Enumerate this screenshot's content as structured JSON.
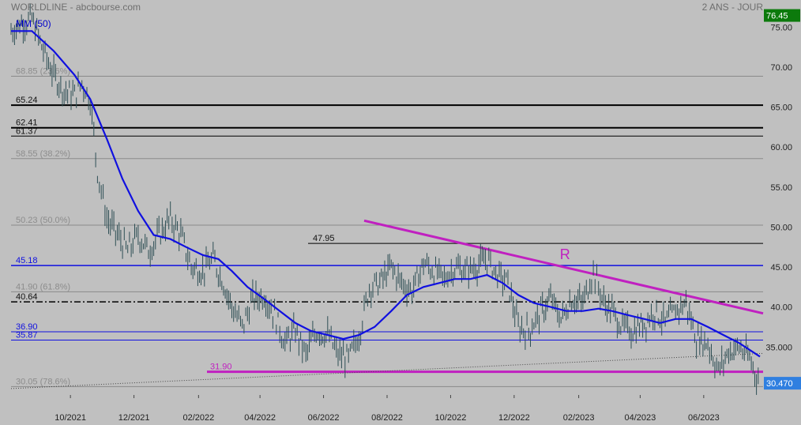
{
  "header": {
    "title": "WORLDLINE - abcbourse.com",
    "period": "2 ANS - JOUR",
    "ma_label": "MM (50)"
  },
  "colors": {
    "background": "#c0c0c0",
    "price_bars": "#2e4f55",
    "moving_average": "#1010e0",
    "resistance": "#c020c0",
    "support_level": "#1010e0",
    "fib_levels": "#8a8a8a",
    "last_price_badge": "#2f7fe0",
    "high_badge": "#0c7a0c"
  },
  "chart_data": {
    "type": "line",
    "title": "WORLDLINE - abcbourse.com",
    "subtitle": "2 ANS - JOUR",
    "xlabel": "",
    "ylabel": "",
    "ylim": [
      29,
      77
    ],
    "xlim": [
      "2021-08-05",
      "2023-07-28"
    ],
    "grid": false,
    "y_ticks": [
      "35.000",
      "40.00",
      "45.00",
      "50.00",
      "55.00",
      "60.00",
      "65.00",
      "70.00",
      "75.00"
    ],
    "x_ticks": [
      {
        "date": "2021-10-01",
        "label": "10/2021"
      },
      {
        "date": "2021-12-01",
        "label": "12/2021"
      },
      {
        "date": "2022-02-01",
        "label": "02/2022"
      },
      {
        "date": "2022-04-01",
        "label": "04/2022"
      },
      {
        "date": "2022-06-01",
        "label": "06/2022"
      },
      {
        "date": "2022-08-01",
        "label": "08/2022"
      },
      {
        "date": "2022-10-01",
        "label": "10/2022"
      },
      {
        "date": "2022-12-01",
        "label": "12/2022"
      },
      {
        "date": "2023-02-01",
        "label": "02/2023"
      },
      {
        "date": "2023-04-01",
        "label": "04/2023"
      },
      {
        "date": "2023-06-01",
        "label": "06/2023"
      }
    ],
    "series": [
      {
        "name": "",
        "kind": "price",
        "x": [
          "2021-08-05",
          "2021-08-15",
          "2021-08-25",
          "2021-09-05",
          "2021-09-15",
          "2021-09-25",
          "2021-10-05",
          "2021-10-12",
          "2021-10-20",
          "2021-10-27",
          "2021-11-05",
          "2021-11-15",
          "2021-11-25",
          "2021-12-05",
          "2021-12-15",
          "2021-12-25",
          "2022-01-05",
          "2022-01-15",
          "2022-01-25",
          "2022-02-05",
          "2022-02-15",
          "2022-02-25",
          "2022-03-05",
          "2022-03-15",
          "2022-03-25",
          "2022-04-05",
          "2022-04-15",
          "2022-04-25",
          "2022-05-05",
          "2022-05-15",
          "2022-05-25",
          "2022-06-05",
          "2022-06-15",
          "2022-06-25",
          "2022-07-05",
          "2022-07-15",
          "2022-07-25",
          "2022-08-05",
          "2022-08-15",
          "2022-08-25",
          "2022-09-05",
          "2022-09-15",
          "2022-09-25",
          "2022-10-05",
          "2022-10-15",
          "2022-10-25",
          "2022-11-05",
          "2022-11-15",
          "2022-11-25",
          "2022-12-05",
          "2022-12-15",
          "2022-12-25",
          "2023-01-05",
          "2023-01-15",
          "2023-01-25",
          "2023-02-05",
          "2023-02-15",
          "2023-02-25",
          "2023-03-05",
          "2023-03-15",
          "2023-03-25",
          "2023-04-05",
          "2023-04-15",
          "2023-04-25",
          "2023-05-05",
          "2023-05-15",
          "2023-05-25",
          "2023-06-05",
          "2023-06-15",
          "2023-06-25",
          "2023-07-05",
          "2023-07-15",
          "2023-07-25"
        ],
        "y": [
          74.5,
          75.5,
          76.0,
          72.0,
          69.0,
          67.0,
          66.5,
          68.0,
          66.0,
          57.0,
          51.0,
          49.0,
          47.0,
          49.0,
          47.0,
          49.0,
          51.0,
          49.0,
          45.0,
          44.5,
          46.0,
          43.0,
          40.0,
          37.5,
          41.0,
          41.5,
          39.0,
          35.5,
          37.0,
          34.0,
          37.0,
          36.5,
          34.0,
          33.5,
          36.5,
          42.5,
          43.0,
          45.0,
          43.0,
          42.0,
          45.5,
          44.5,
          43.5,
          45.0,
          44.5,
          45.0,
          46.0,
          44.0,
          43.0,
          37.5,
          37.0,
          39.0,
          41.0,
          38.5,
          41.0,
          40.5,
          44.5,
          40.5,
          39.5,
          37.5,
          37.0,
          38.0,
          39.5,
          38.0,
          39.5,
          40.5,
          36.0,
          35.5,
          32.0,
          34.5,
          35.0,
          33.5,
          30.47
        ]
      },
      {
        "name": "MM (50)",
        "kind": "moving_average",
        "x": [
          "2021-08-05",
          "2021-08-25",
          "2021-09-15",
          "2021-10-05",
          "2021-10-20",
          "2021-11-05",
          "2021-11-20",
          "2021-12-05",
          "2021-12-20",
          "2022-01-05",
          "2022-01-20",
          "2022-02-05",
          "2022-02-20",
          "2022-03-05",
          "2022-03-20",
          "2022-04-05",
          "2022-04-20",
          "2022-05-05",
          "2022-05-20",
          "2022-06-05",
          "2022-06-20",
          "2022-07-05",
          "2022-07-20",
          "2022-08-05",
          "2022-08-20",
          "2022-09-05",
          "2022-09-20",
          "2022-10-05",
          "2022-10-20",
          "2022-11-05",
          "2022-11-20",
          "2022-12-05",
          "2022-12-20",
          "2023-01-05",
          "2023-01-20",
          "2023-02-05",
          "2023-02-20",
          "2023-03-05",
          "2023-03-20",
          "2023-04-05",
          "2023-04-20",
          "2023-05-05",
          "2023-05-20",
          "2023-06-05",
          "2023-06-20",
          "2023-07-05",
          "2023-07-25"
        ],
        "y": [
          74.5,
          74.5,
          72.0,
          69.0,
          66.0,
          61.0,
          56.0,
          52.0,
          49.0,
          48.5,
          47.5,
          46.5,
          46.0,
          44.5,
          42.5,
          41.0,
          39.5,
          38.0,
          37.0,
          36.5,
          36.0,
          36.5,
          37.5,
          39.5,
          41.5,
          42.5,
          43.0,
          43.5,
          43.5,
          44.0,
          43.0,
          41.5,
          40.5,
          40.0,
          39.5,
          39.5,
          39.8,
          39.5,
          39.0,
          38.5,
          38.0,
          38.5,
          38.5,
          37.5,
          36.5,
          35.5,
          33.8
        ]
      }
    ],
    "horizontal_levels": [
      {
        "value": 68.85,
        "label": "68.85  (23.6%)",
        "kind": "fib"
      },
      {
        "value": 65.24,
        "label": "65.24",
        "kind": "level"
      },
      {
        "value": 62.41,
        "label": "62.41",
        "kind": "level"
      },
      {
        "value": 61.37,
        "label": "61.37",
        "kind": "level"
      },
      {
        "value": 58.55,
        "label": "58.55  (38.2%)",
        "kind": "fib"
      },
      {
        "value": 50.23,
        "label": "50.23  (50.0%)",
        "kind": "fib"
      },
      {
        "value": 47.95,
        "label": "47.95",
        "kind": "level"
      },
      {
        "value": 45.18,
        "label": "45.18",
        "kind": "support"
      },
      {
        "value": 41.9,
        "label": "41.90  (61.8%)",
        "kind": "fib"
      },
      {
        "value": 40.64,
        "label": "40.64",
        "kind": "dashdot"
      },
      {
        "value": 36.9,
        "label": "36.90",
        "kind": "support"
      },
      {
        "value": 35.87,
        "label": "35.87",
        "kind": "support"
      },
      {
        "value": 31.9,
        "label": "31.90",
        "kind": "magenta"
      },
      {
        "value": 30.05,
        "label": "30.05  (78.6%)",
        "kind": "fib"
      }
    ],
    "trendlines": [
      {
        "kind": "resistance",
        "label": "R",
        "from": {
          "x": "2022-07-10",
          "y": 50.8
        },
        "to": {
          "x": "2023-07-28",
          "y": 39.2
        }
      },
      {
        "kind": "dotted",
        "label": "",
        "from": {
          "x": "2021-08-05",
          "y": 29.8
        },
        "to": {
          "x": "2023-07-28",
          "y": 34.2
        }
      }
    ],
    "badges": [
      {
        "value": 76.45,
        "label": "76.45",
        "kind": "high"
      },
      {
        "value": 30.47,
        "label": "30.470",
        "kind": "last"
      }
    ]
  }
}
